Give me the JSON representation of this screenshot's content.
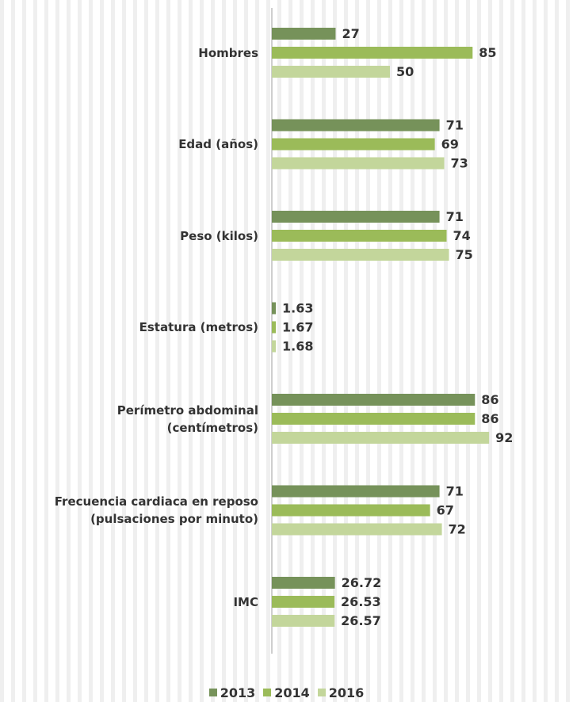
{
  "chart_data": {
    "type": "bar",
    "orientation": "horizontal",
    "categories": [
      "Hombres",
      "Edad (años)",
      "Peso (kilos)",
      "Estatura (metros)",
      "Perímetro abdominal\n(centímetros)",
      "Frecuencia cardiaca en reposo\n(pulsaciones por minuto)",
      "IMC"
    ],
    "series": [
      {
        "name": "2013",
        "color": "#76925a",
        "values": [
          27,
          71,
          71,
          1.63,
          86,
          71,
          26.72
        ],
        "labels": [
          "27",
          "71",
          "71",
          "1.63",
          "86",
          "71",
          "26.72"
        ]
      },
      {
        "name": "2014",
        "color": "#9bbb59",
        "values": [
          85,
          69,
          74,
          1.67,
          86,
          67,
          26.53
        ],
        "labels": [
          "85",
          "69",
          "74",
          "1.67",
          "86",
          "67",
          "26.53"
        ]
      },
      {
        "name": "2016",
        "color": "#c3d69b",
        "values": [
          50,
          73,
          75,
          1.68,
          92,
          72,
          26.57
        ],
        "labels": [
          "50",
          "73",
          "75",
          "1.68",
          "92",
          "72",
          "26.57"
        ]
      }
    ],
    "xlim": [
      0,
      100
    ],
    "axis_color": "#bfbfbf",
    "grid": false,
    "legend_position": "bottom"
  }
}
